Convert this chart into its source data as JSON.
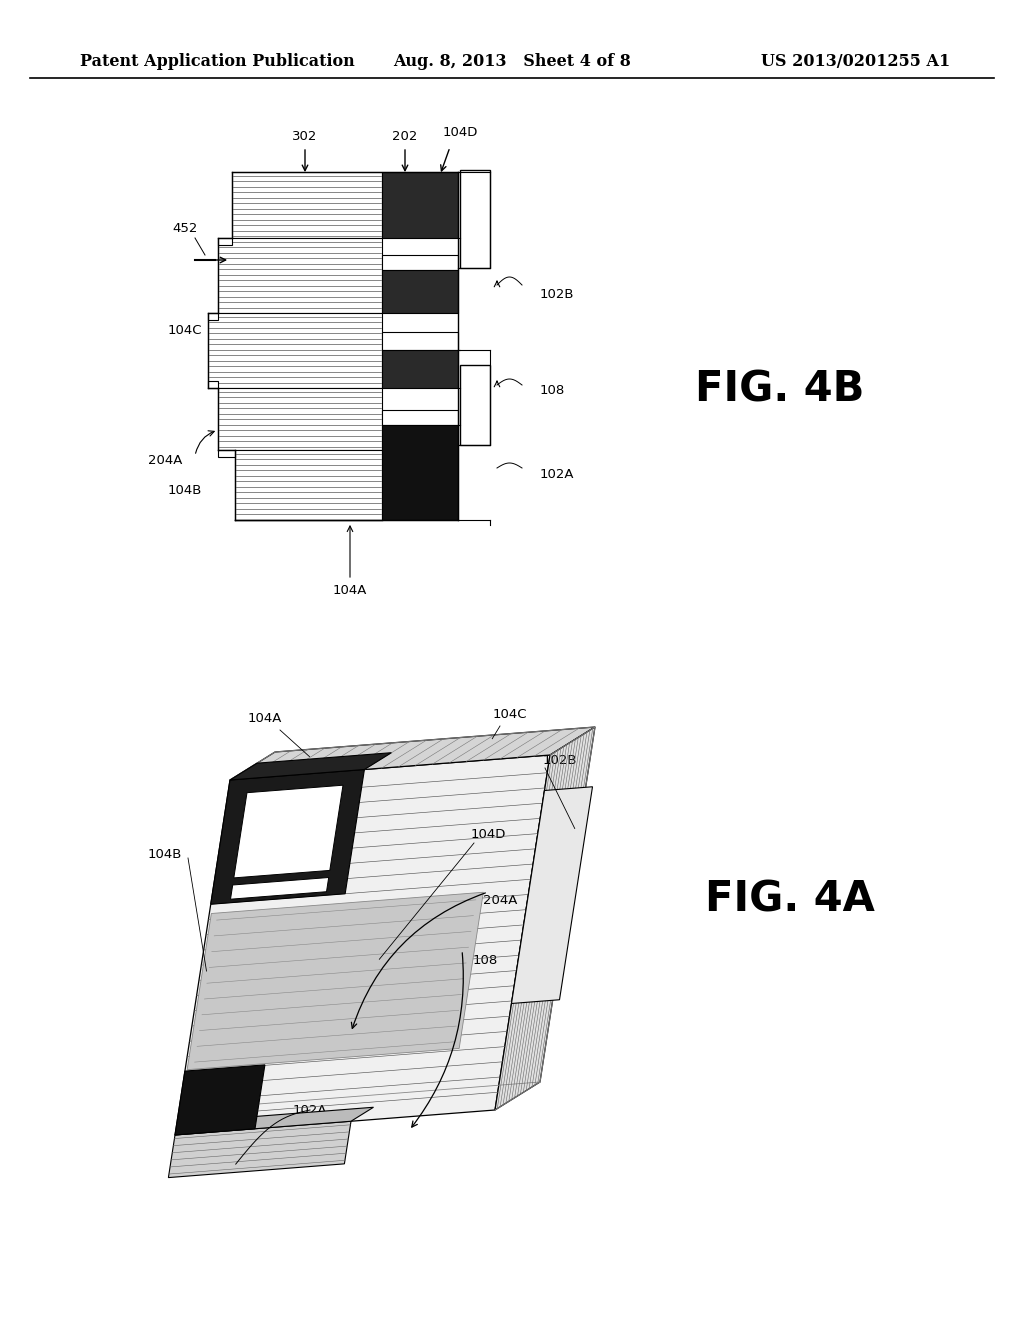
{
  "background_color": "#ffffff",
  "header_left": "Patent Application Publication",
  "header_center": "Aug. 8, 2013   Sheet 4 of 8",
  "header_right": "US 2013/0201255 A1",
  "header_fontsize": 11.5,
  "fig4b_label": "FIG. 4B",
  "fig4b_label_fontsize": 30,
  "fig4a_label": "FIG. 4A",
  "fig4a_label_fontsize": 30,
  "line_color": "#000000",
  "white_fill": "#ffffff",
  "dark_fill": "#1a1a1a",
  "gray_fill": "#888888",
  "light_gray": "#cccccc"
}
